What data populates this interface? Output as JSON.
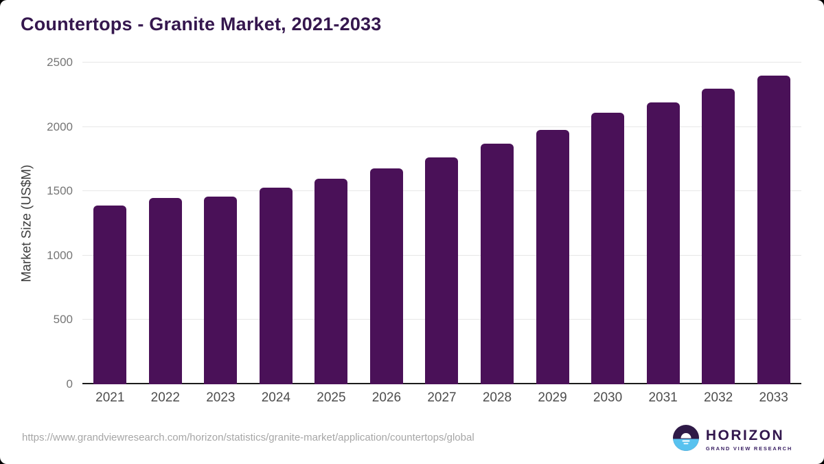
{
  "chart_data": {
    "type": "bar",
    "title": "Countertops - Granite Market, 2021-2033",
    "categories": [
      "2021",
      "2022",
      "2023",
      "2024",
      "2025",
      "2026",
      "2027",
      "2028",
      "2029",
      "2030",
      "2031",
      "2032",
      "2033"
    ],
    "values": [
      1390,
      1450,
      1460,
      1530,
      1595,
      1675,
      1765,
      1870,
      1975,
      2110,
      2190,
      2295,
      2400
    ],
    "xlabel": "",
    "ylabel": "Market Size (US$M)",
    "ylim": [
      0,
      2500
    ],
    "yticks": [
      0,
      500,
      1000,
      1500,
      2000,
      2500
    ],
    "grid": "horizontal",
    "legend": "none",
    "bar_color": "#4a1158"
  },
  "footer": {
    "source_url": "https://www.grandviewresearch.com/horizon/statistics/granite-market/application/countertops/global",
    "logo": {
      "brand": "HORIZON",
      "tagline": "GRAND VIEW RESEARCH"
    }
  },
  "colors": {
    "title": "#35174e",
    "bar": "#4a1158",
    "logo_purple": "#32174d",
    "logo_blue": "#58c2ef",
    "gridline": "#e7e7e7",
    "axis": "#1c1c1c"
  }
}
